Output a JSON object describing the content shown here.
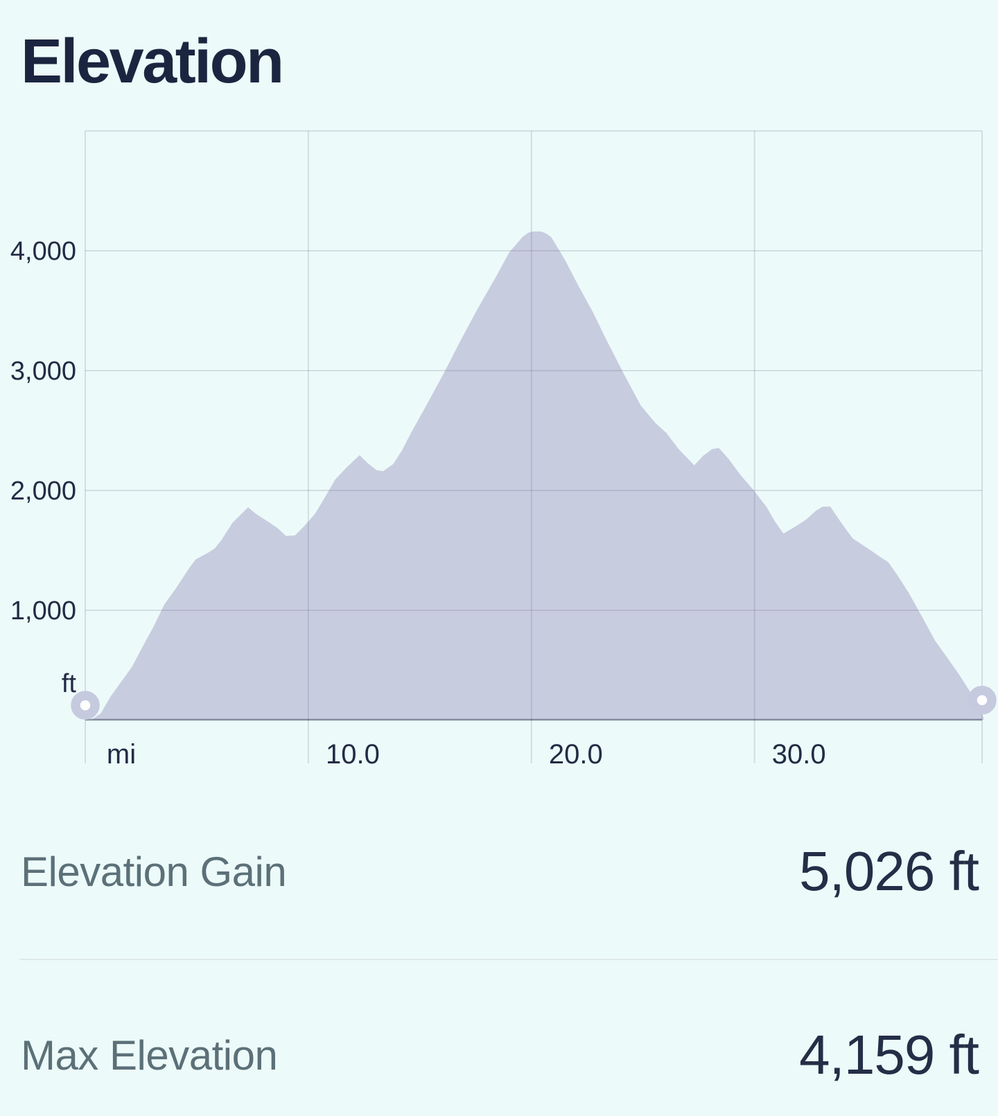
{
  "app": {
    "title": "Elevation"
  },
  "chart_data": {
    "type": "area",
    "title": "Elevation",
    "xlabel": "mi",
    "ylabel": "ft",
    "x_unit_label": "mi",
    "y_unit_label": "ft",
    "xlim": [
      0,
      40.2
    ],
    "ylim": [
      87,
      5000
    ],
    "grid": true,
    "legend_position": "none",
    "x_gridlines_mi": [
      0,
      10,
      20,
      30,
      40.2
    ],
    "y_gridlines_ft": [
      1000,
      2000,
      3000,
      4000,
      5000
    ],
    "x_tick_labels": [
      {
        "label": "10.0",
        "mi": 10
      },
      {
        "label": "20.0",
        "mi": 20
      },
      {
        "label": "30.0",
        "mi": 30
      }
    ],
    "y_tick_labels": [
      {
        "label": "4,000",
        "ft": 4000
      },
      {
        "label": "3,000",
        "ft": 3000
      },
      {
        "label": "2,000",
        "ft": 2000
      },
      {
        "label": "1,000",
        "ft": 1000
      }
    ],
    "series": [
      {
        "name": "elevation-profile",
        "points_mi_ft": [
          [
            0.3,
            90
          ],
          [
            0.7,
            140
          ],
          [
            1.15,
            285
          ],
          [
            1.6,
            400
          ],
          [
            2.1,
            530
          ],
          [
            2.55,
            690
          ],
          [
            3.05,
            860
          ],
          [
            3.55,
            1050
          ],
          [
            4.05,
            1180
          ],
          [
            4.3,
            1250
          ],
          [
            4.65,
            1350
          ],
          [
            4.95,
            1425
          ],
          [
            5.5,
            1480
          ],
          [
            5.8,
            1515
          ],
          [
            6.1,
            1585
          ],
          [
            6.6,
            1730
          ],
          [
            7.3,
            1860
          ],
          [
            7.65,
            1805
          ],
          [
            8.15,
            1745
          ],
          [
            8.6,
            1690
          ],
          [
            9.0,
            1620
          ],
          [
            9.4,
            1625
          ],
          [
            9.85,
            1710
          ],
          [
            10.3,
            1805
          ],
          [
            10.8,
            1960
          ],
          [
            11.2,
            2090
          ],
          [
            11.7,
            2190
          ],
          [
            12.3,
            2295
          ],
          [
            12.65,
            2230
          ],
          [
            13.05,
            2170
          ],
          [
            13.35,
            2160
          ],
          [
            13.8,
            2220
          ],
          [
            14.2,
            2335
          ],
          [
            14.6,
            2480
          ],
          [
            15.2,
            2680
          ],
          [
            16.05,
            2970
          ],
          [
            16.85,
            3260
          ],
          [
            17.6,
            3520
          ],
          [
            18.4,
            3780
          ],
          [
            19.0,
            3985
          ],
          [
            19.6,
            4115
          ],
          [
            19.85,
            4150
          ],
          [
            20.05,
            4160
          ],
          [
            20.45,
            4160
          ],
          [
            20.7,
            4140
          ],
          [
            20.9,
            4110
          ],
          [
            21.5,
            3925
          ],
          [
            22.1,
            3710
          ],
          [
            22.75,
            3490
          ],
          [
            23.35,
            3260
          ],
          [
            24.15,
            2970
          ],
          [
            24.9,
            2710
          ],
          [
            25.55,
            2565
          ],
          [
            26.05,
            2480
          ],
          [
            26.6,
            2345
          ],
          [
            27.3,
            2210
          ],
          [
            27.7,
            2290
          ],
          [
            28.1,
            2345
          ],
          [
            28.4,
            2355
          ],
          [
            28.85,
            2260
          ],
          [
            29.35,
            2135
          ],
          [
            29.95,
            2005
          ],
          [
            30.55,
            1860
          ],
          [
            30.9,
            1745
          ],
          [
            31.3,
            1640
          ],
          [
            31.75,
            1690
          ],
          [
            32.3,
            1755
          ],
          [
            32.75,
            1830
          ],
          [
            33.05,
            1865
          ],
          [
            33.4,
            1865
          ],
          [
            33.85,
            1740
          ],
          [
            34.4,
            1600
          ],
          [
            34.85,
            1545
          ],
          [
            35.25,
            1495
          ],
          [
            35.6,
            1450
          ],
          [
            36.0,
            1400
          ],
          [
            36.4,
            1295
          ],
          [
            36.9,
            1150
          ],
          [
            37.5,
            950
          ],
          [
            38.1,
            745
          ],
          [
            38.7,
            590
          ],
          [
            39.2,
            455
          ],
          [
            39.65,
            325
          ],
          [
            40.0,
            215
          ],
          [
            40.2,
            140
          ],
          [
            40.28,
            90
          ]
        ]
      }
    ],
    "markers": {
      "start": {
        "mi": 0,
        "ft": 208
      },
      "end": {
        "mi": 40.2,
        "ft": 250
      }
    },
    "colors": {
      "background": "#ecfaf9",
      "area_fill": "#c8ccdf",
      "gridline": "rgba(90,100,130,0.18)",
      "axis_line": "rgba(45,55,80,0.5)",
      "marker_ring": "#c5cade",
      "marker_center": "#ffffff",
      "tick_text": "#222b44"
    }
  },
  "stats": {
    "rows": [
      {
        "label": "Elevation Gain",
        "value": "5,026 ft"
      },
      {
        "label": "Max Elevation",
        "value": "4,159 ft"
      }
    ]
  }
}
